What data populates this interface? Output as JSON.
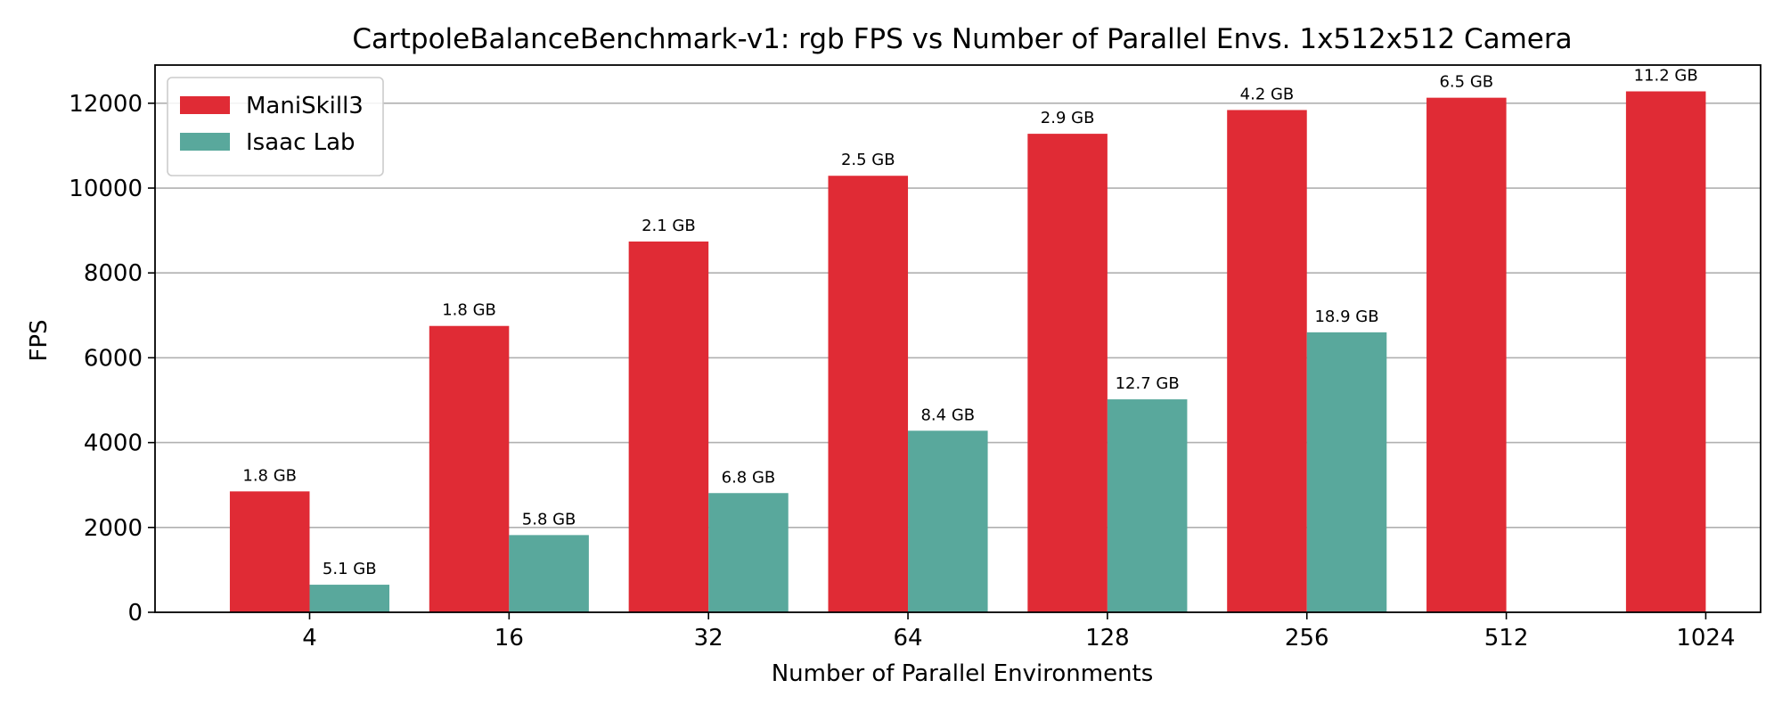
{
  "chart_data": {
    "type": "bar",
    "title": "CartpoleBalanceBenchmark-v1: rgb FPS vs Number of Parallel Envs. 1x512x512 Camera",
    "xlabel": "Number of Parallel Environments",
    "ylabel": "FPS",
    "ylim": [
      0,
      12900
    ],
    "yticks": [
      0,
      2000,
      4000,
      6000,
      8000,
      10000,
      12000
    ],
    "grid": "y",
    "legend_position": "top-left",
    "categories": [
      "4",
      "16",
      "32",
      "64",
      "128",
      "256",
      "512",
      "1024"
    ],
    "series": [
      {
        "name": "ManiSkill3",
        "color": "#e02b35",
        "values": [
          2850,
          6750,
          8740,
          10290,
          11280,
          11840,
          12130,
          12280
        ],
        "labels": [
          "1.8 GB",
          "1.8 GB",
          "2.1 GB",
          "2.5 GB",
          "2.9 GB",
          "4.2 GB",
          "6.5 GB",
          "11.2 GB"
        ]
      },
      {
        "name": "Isaac Lab",
        "color": "#59a89c",
        "values": [
          650,
          1820,
          2810,
          4280,
          5020,
          6600,
          null,
          null
        ],
        "labels": [
          "5.1 GB",
          "5.8 GB",
          "6.8 GB",
          "8.4 GB",
          "12.7 GB",
          "18.9 GB",
          null,
          null
        ]
      }
    ]
  }
}
